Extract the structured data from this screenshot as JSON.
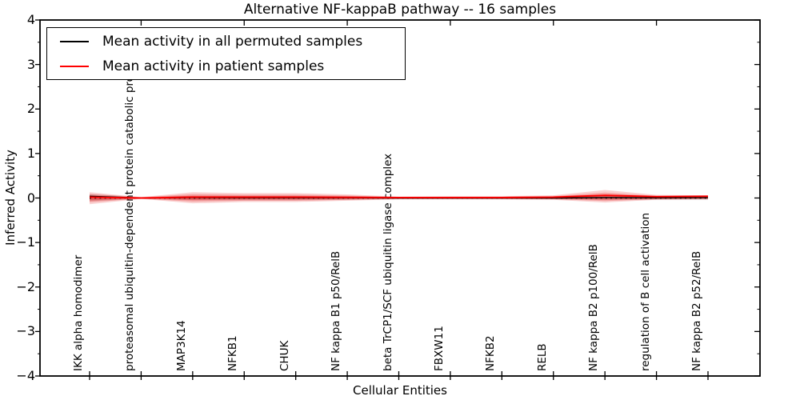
{
  "title": "Alternative NF-kappaB pathway -- 16 samples",
  "legend": {
    "items": [
      {
        "label": "Mean activity in all permuted samples",
        "color": "#000000"
      },
      {
        "label": "Mean activity in patient samples",
        "color": "#ff0000"
      }
    ]
  },
  "axes": {
    "xlabel": "Cellular Entities",
    "ylabel": "Inferred Activity",
    "ylim": [
      -4,
      4
    ],
    "ytick_values": [
      4,
      3,
      2,
      1,
      0,
      -1,
      -2,
      -3,
      -4
    ],
    "ytick_labels": [
      "4",
      "3",
      "2",
      "1",
      "0",
      "−1",
      "−2",
      "−3",
      "−4"
    ]
  },
  "colors": {
    "permuted_line": "#000000",
    "patient_line": "#ff0000",
    "permuted_band": "rgba(0,0,0,0.16)",
    "patient_band": "rgba(230,25,25,0.20)",
    "spine": "#000000",
    "background": "#ffffff"
  },
  "chart_data": {
    "type": "line",
    "title": "Alternative NF-kappaB pathway -- 16 samples",
    "xlabel": "Cellular Entities",
    "ylabel": "Inferred Activity",
    "ylim": [
      -4,
      4
    ],
    "grid": false,
    "legend_position": "upper left",
    "zero_reference_line": 0,
    "categories": [
      "IKK alpha homodimer",
      "proteasomal ubiquitin-dependent protein catabolic process",
      "MAP3K14",
      "NFKB1",
      "CHUK",
      "NF kappa B1 p50/RelB",
      "beta TrCP1/SCF ubiquitin ligase complex",
      "FBXW11",
      "NFKB2",
      "RELB",
      "NF kappa B2 p100/RelB",
      "regulation of B cell activation",
      "NF kappa B2 p52/RelB"
    ],
    "series": [
      {
        "name": "Mean activity in all permuted samples",
        "color": "#000000",
        "values": [
          0.04,
          0.0,
          0.01,
          0.005,
          0.005,
          0.005,
          0.0,
          0.0,
          0.0,
          0.0,
          0.01,
          0.005,
          0.01
        ],
        "band_low": [
          -0.07,
          -0.02,
          -0.05,
          -0.05,
          -0.05,
          -0.04,
          -0.03,
          -0.03,
          -0.03,
          -0.03,
          -0.04,
          -0.04,
          -0.04
        ],
        "band_high": [
          0.09,
          0.02,
          0.05,
          0.05,
          0.05,
          0.04,
          0.03,
          0.03,
          0.03,
          0.03,
          0.04,
          0.04,
          0.04
        ]
      },
      {
        "name": "Mean activity in patient samples",
        "color": "#ff0000",
        "values": [
          0.02,
          0.0,
          0.02,
          0.02,
          0.02,
          0.015,
          0.01,
          0.01,
          0.01,
          0.02,
          0.06,
          0.03,
          0.04
        ],
        "band_low": [
          -0.14,
          -0.02,
          -0.12,
          -0.09,
          -0.09,
          -0.06,
          -0.03,
          -0.03,
          -0.03,
          -0.04,
          -0.1,
          -0.04,
          -0.03
        ],
        "band_high": [
          0.13,
          0.02,
          0.13,
          0.11,
          0.11,
          0.08,
          0.03,
          0.04,
          0.04,
          0.06,
          0.18,
          0.07,
          0.06
        ]
      }
    ]
  }
}
